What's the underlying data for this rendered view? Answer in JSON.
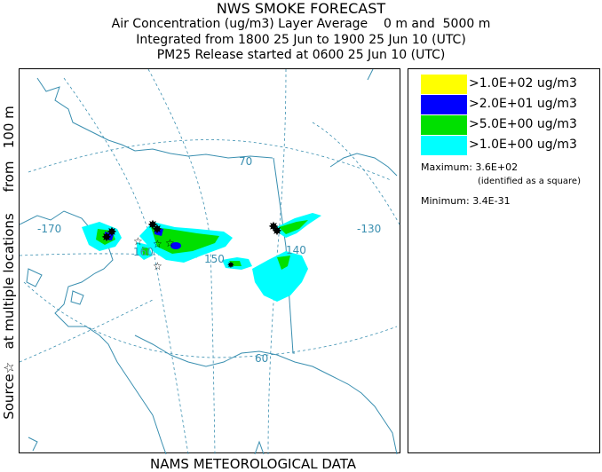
{
  "header": {
    "title": "NWS SMOKE FORECAST",
    "line1": "Air Concentration (ug/m3) Layer Average    0 m and  5000 m",
    "line2": "Integrated from 1800 25 Jun to 1900 25 Jun 10 (UTC)",
    "line3": "PM25 Release started at 0600 25 Jun 10 (UTC)"
  },
  "side_label": "Source☆   at multiple locations     from   100 m",
  "footer": "NAMS METEOROLOGICAL DATA",
  "map": {
    "graticule_labels": {
      "lat70": "70",
      "lat60": "60",
      "lon_170": "-170",
      "lon_160": "160",
      "lon_150": "150",
      "lon_140": "140",
      "lon_130": "-130"
    },
    "colors": {
      "coast": "#3a8fb0",
      "grid": "#3a8fb0",
      "level1": "#00ffff",
      "level2": "#00e000",
      "level3": "#0000ff",
      "level4": "#ffff00"
    }
  },
  "legend": {
    "entries": [
      {
        "label": ">1.0E+02 ug/m3",
        "color": "#ffff00"
      },
      {
        "label": ">2.0E+01 ug/m3",
        "color": "#0000ff"
      },
      {
        "label": ">5.0E+00 ug/m3",
        "color": "#00e000"
      },
      {
        "label": ">1.0E+00 ug/m3",
        "color": "#00ffff"
      }
    ],
    "maximum_label": "Maximum:",
    "maximum_value": "3.6E+02",
    "maximum_note": "(identified as a square)",
    "minimum_label": "Minimum:",
    "minimum_value": "3.4E-31"
  }
}
